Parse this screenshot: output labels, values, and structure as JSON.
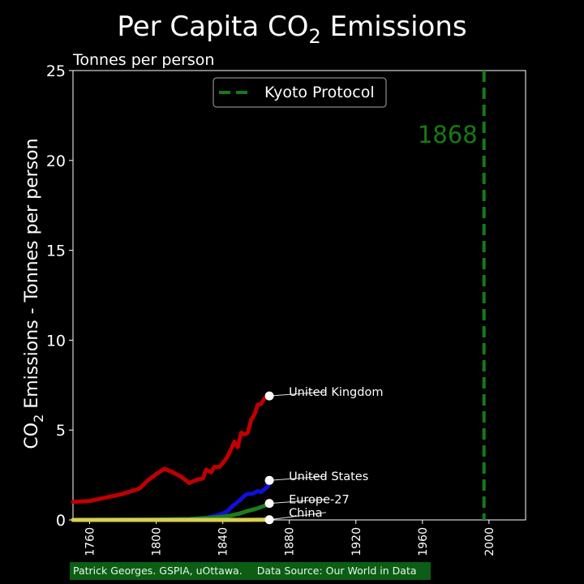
{
  "chart_data": {
    "type": "line",
    "title": "Per Capita CO",
    "title_subscript": "2",
    "title_suffix": " Emissions",
    "subtitle": "Tonnes per person",
    "ylabel_prefix": "CO",
    "ylabel_subscript": "2",
    "ylabel_suffix": " Emissions - Tonnes per person",
    "xlim": [
      1750,
      2022
    ],
    "ylim": [
      0,
      25
    ],
    "x_ticks": [
      1760,
      1800,
      1840,
      1880,
      1920,
      1960,
      2000
    ],
    "y_ticks": [
      0,
      5,
      10,
      15,
      20,
      25
    ],
    "current_year": "1868",
    "grid": false,
    "legend": {
      "position": "top-center",
      "entries": [
        "Kyoto Protocol"
      ]
    },
    "reference_line": {
      "label": "Kyoto Protocol",
      "x": 1997,
      "color": "#167a16",
      "style": "dashed"
    },
    "series": [
      {
        "name": "United Kingdom",
        "color": "#c00000",
        "x": [
          1750,
          1760,
          1770,
          1780,
          1790,
          1795,
          1800,
          1805,
          1810,
          1815,
          1820,
          1822,
          1825,
          1828,
          1830,
          1833,
          1835,
          1838,
          1840,
          1843,
          1845,
          1847,
          1849,
          1851,
          1853,
          1855,
          1857,
          1859,
          1861,
          1863,
          1865,
          1867,
          1868
        ],
        "values": [
          1.0,
          1.05,
          1.25,
          1.45,
          1.75,
          2.2,
          2.55,
          2.85,
          2.65,
          2.4,
          2.05,
          2.15,
          2.25,
          2.3,
          2.8,
          2.65,
          2.95,
          2.95,
          3.15,
          3.55,
          3.95,
          4.35,
          4.05,
          4.85,
          4.75,
          4.85,
          5.55,
          5.85,
          6.4,
          6.45,
          6.75,
          6.85,
          6.9
        ]
      },
      {
        "name": "United States",
        "color": "#1010d8",
        "x": [
          1750,
          1800,
          1820,
          1830,
          1835,
          1840,
          1843,
          1845,
          1847,
          1849,
          1851,
          1853,
          1855,
          1857,
          1859,
          1861,
          1863,
          1865,
          1867,
          1868
        ],
        "values": [
          0.0,
          0.01,
          0.05,
          0.12,
          0.22,
          0.35,
          0.5,
          0.7,
          0.85,
          1.0,
          1.15,
          1.35,
          1.45,
          1.45,
          1.5,
          1.6,
          1.55,
          1.7,
          1.85,
          2.2
        ]
      },
      {
        "name": "Europe-27",
        "color": "#1d7d1d",
        "x": [
          1750,
          1800,
          1820,
          1830,
          1840,
          1845,
          1850,
          1855,
          1860,
          1865,
          1868
        ],
        "values": [
          0.0,
          0.02,
          0.05,
          0.1,
          0.18,
          0.25,
          0.35,
          0.5,
          0.62,
          0.78,
          0.92
        ]
      },
      {
        "name": "China",
        "color": "#d8d050",
        "x": [
          1750,
          1800,
          1850,
          1868
        ],
        "values": [
          0.0,
          0.0,
          0.0,
          0.01
        ]
      }
    ]
  },
  "footer": {
    "credit": "Patrick Georges. GSPIA, uOttawa.",
    "source": "Data Source: Our World in Data"
  }
}
